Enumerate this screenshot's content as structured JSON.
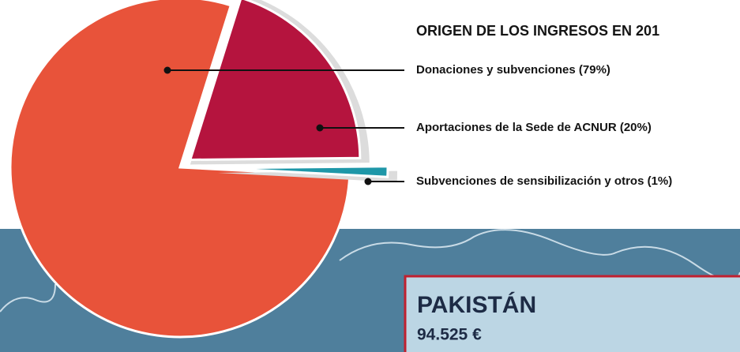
{
  "chart_data": {
    "type": "pie",
    "title": "ORIGEN DE LOS INGRESOS EN 201",
    "categories": [
      "Donaciones y subvenciones",
      "Aportaciones de la Sede de ACNUR",
      "Subvenciones de sensibilización y otros"
    ],
    "values": [
      79,
      20,
      1
    ],
    "value_labels": [
      "(79%)",
      "(20%)",
      "(1%)"
    ],
    "colors": [
      "#e8533a",
      "#b5143e",
      "#1e97a8"
    ]
  },
  "annotation": {
    "title": "PAKISTÁN",
    "amount": "94.525 €"
  }
}
